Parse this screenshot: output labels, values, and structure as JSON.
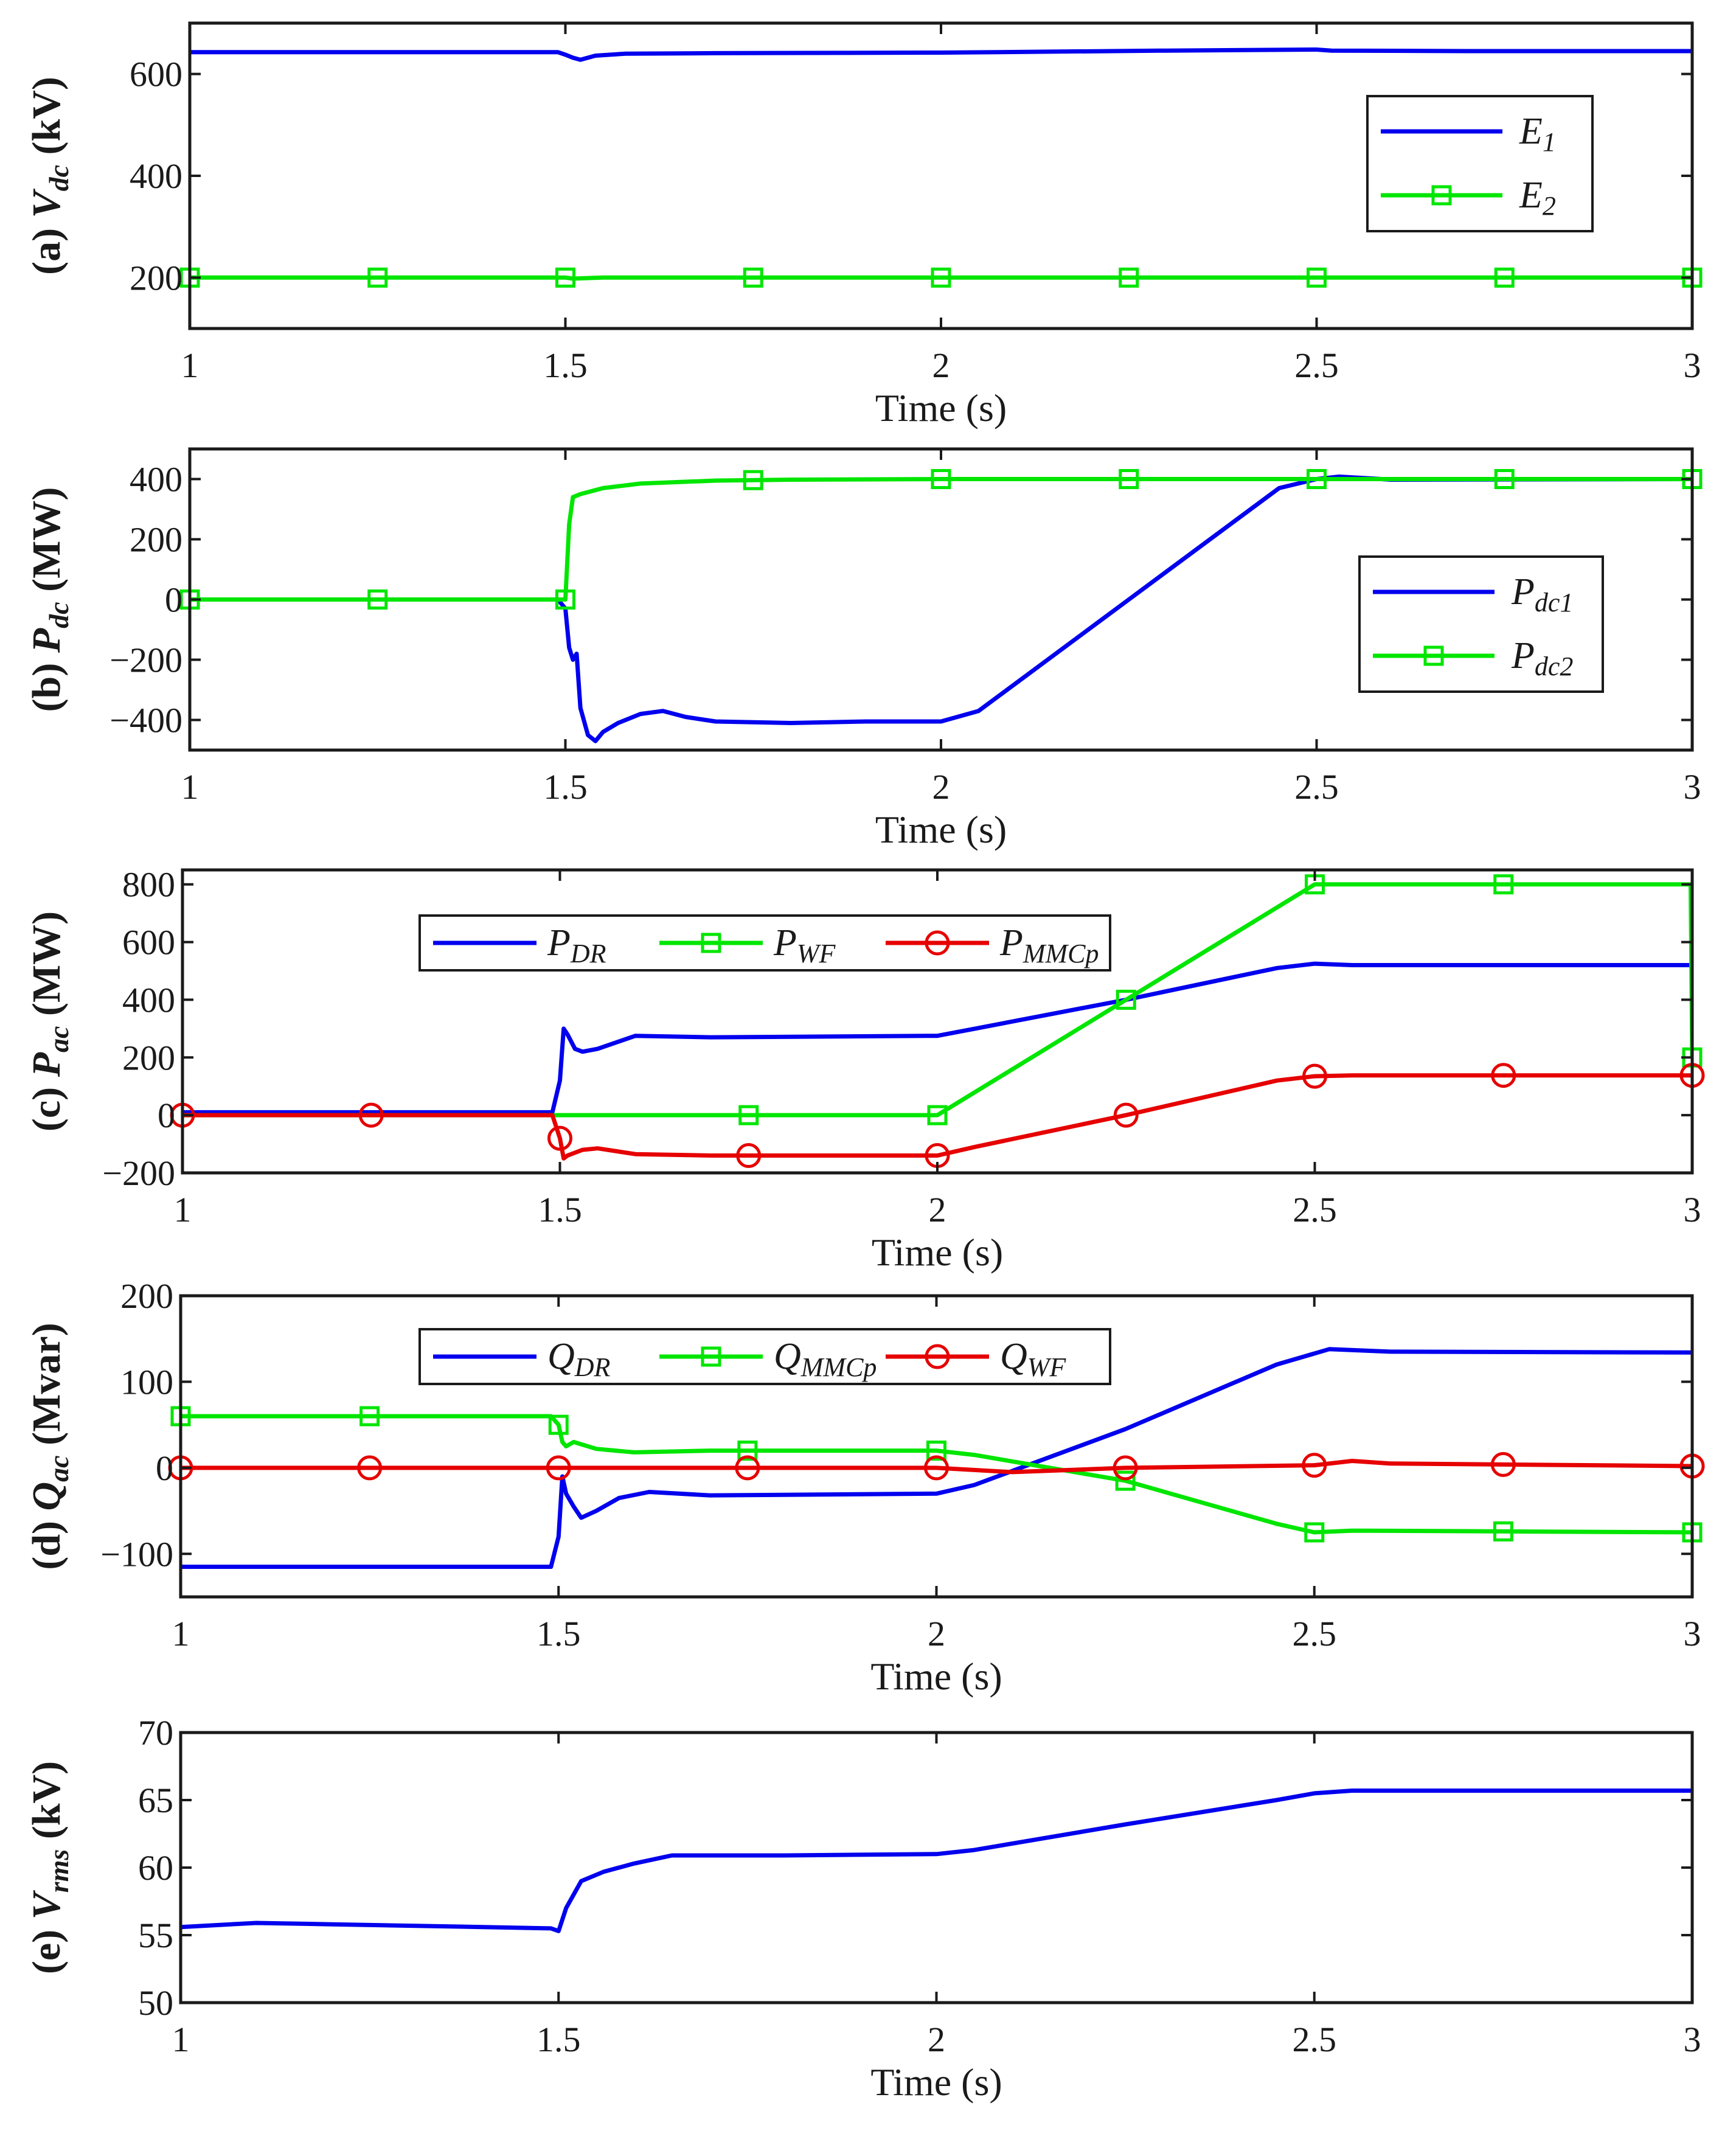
{
  "figure": {
    "description_free": true
  },
  "chart_data": [
    {
      "id": "a",
      "type": "line",
      "ylabel": "(a) V_dc (kV)",
      "ylabel_parts": {
        "prefix": "(a) ",
        "var": "V",
        "sub": "dc",
        "unit": " (kV)"
      },
      "xlabel": "Time (s)",
      "xlim": [
        1,
        3
      ],
      "ylim": [
        100,
        700
      ],
      "xticks": [
        1,
        1.5,
        2,
        2.5,
        3
      ],
      "xtick_labels": [
        "1",
        "1.5",
        "2",
        "2.5",
        "3"
      ],
      "yticks": [
        200,
        400,
        600
      ],
      "ytick_labels": [
        "200",
        "400",
        "600"
      ],
      "legend_position": "right",
      "series": [
        {
          "name": "E",
          "sub": "1",
          "color": "#0000ee",
          "marker": "none",
          "x": [
            1,
            1.49,
            1.5,
            1.51,
            1.52,
            1.54,
            1.58,
            1.7,
            2.0,
            2.3,
            2.5,
            2.52,
            2.7,
            3.0
          ],
          "y": [
            643,
            643,
            638,
            632,
            628,
            636,
            640,
            641,
            642,
            646,
            648,
            646,
            645,
            645
          ]
        },
        {
          "name": "E",
          "sub": "2",
          "color": "#00e600",
          "marker": "square",
          "x": [
            1,
            1.5,
            1.51,
            1.55,
            2.0,
            3.0
          ],
          "y": [
            200,
            200,
            198,
            200,
            200,
            200
          ],
          "marker_x": [
            1,
            1.25,
            1.5,
            1.75,
            2.0,
            2.25,
            2.5,
            2.75,
            3.0
          ]
        }
      ]
    },
    {
      "id": "b",
      "type": "line",
      "ylabel": "(b) P_dc (MW)",
      "ylabel_parts": {
        "prefix": "(b) ",
        "var": "P",
        "sub": "dc",
        "unit": " (MW)"
      },
      "xlabel": "Time (s)",
      "xlim": [
        1,
        3
      ],
      "ylim": [
        -500,
        500
      ],
      "xticks": [
        1,
        1.5,
        2,
        2.5,
        3
      ],
      "xtick_labels": [
        "1",
        "1.5",
        "2",
        "2.5",
        "3"
      ],
      "yticks": [
        -400,
        -200,
        0,
        200,
        400
      ],
      "ytick_labels": [
        "-400",
        "-200",
        "0",
        "200",
        "400"
      ],
      "legend_position": "right",
      "series": [
        {
          "name": "P",
          "sub": "dc1",
          "color": "#0000ee",
          "marker": "none",
          "x": [
            1,
            1.49,
            1.5,
            1.505,
            1.51,
            1.515,
            1.52,
            1.53,
            1.54,
            1.55,
            1.57,
            1.6,
            1.63,
            1.66,
            1.7,
            1.8,
            1.9,
            2.0,
            2.05,
            2.25,
            2.45,
            2.5,
            2.53,
            2.6,
            3.0
          ],
          "y": [
            0,
            0,
            -30,
            -160,
            -200,
            -180,
            -360,
            -450,
            -470,
            -440,
            -410,
            -380,
            -370,
            -390,
            -405,
            -410,
            -405,
            -405,
            -370,
            0,
            370,
            400,
            408,
            398,
            400
          ]
        },
        {
          "name": "P",
          "sub": "dc2",
          "color": "#00e600",
          "marker": "square",
          "x": [
            1,
            1.5,
            1.505,
            1.51,
            1.52,
            1.55,
            1.6,
            1.7,
            1.8,
            2.0,
            3.0
          ],
          "y": [
            0,
            0,
            250,
            340,
            350,
            370,
            385,
            395,
            398,
            400,
            400
          ],
          "marker_x": [
            1,
            1.25,
            1.5,
            1.75,
            2.0,
            2.25,
            2.5,
            2.75,
            3.0
          ]
        }
      ]
    },
    {
      "id": "c",
      "type": "line",
      "ylabel": "(c) P_ac (MW)",
      "ylabel_parts": {
        "prefix": "(c) ",
        "var": "P",
        "sub": "ac",
        "unit": " (MW)"
      },
      "xlabel": "Time (s)",
      "xlim": [
        1,
        3
      ],
      "ylim": [
        -200,
        850
      ],
      "xticks": [
        1,
        1.5,
        2,
        2.5,
        3
      ],
      "xtick_labels": [
        "1",
        "1.5",
        "2",
        "2.5",
        "3"
      ],
      "yticks": [
        -200,
        0,
        200,
        400,
        600,
        800
      ],
      "ytick_labels": [
        "-200",
        "0",
        "200",
        "400",
        "600",
        "800"
      ],
      "legend_position": "top",
      "series": [
        {
          "name": "P",
          "sub": "DR",
          "color": "#0000ee",
          "marker": "none",
          "x": [
            1,
            1.49,
            1.5,
            1.505,
            1.51,
            1.52,
            1.53,
            1.55,
            1.6,
            1.7,
            2.0,
            2.05,
            2.25,
            2.45,
            2.5,
            2.55,
            3.0
          ],
          "y": [
            10,
            10,
            120,
            300,
            280,
            230,
            220,
            230,
            275,
            270,
            275,
            300,
            400,
            510,
            525,
            520,
            520
          ]
        },
        {
          "name": "P",
          "sub": "WF",
          "color": "#00e600",
          "marker": "square",
          "x": [
            1,
            2.0,
            2.5,
            2.998,
            3.0
          ],
          "y": [
            0,
            0,
            800,
            800,
            200
          ],
          "marker_x": [
            1.75,
            2.0,
            2.25,
            2.5,
            2.75,
            3.0
          ]
        },
        {
          "name": "P",
          "sub": "MMCp",
          "color": "#e60000",
          "marker": "circle",
          "x": [
            1,
            1.49,
            1.5,
            1.505,
            1.51,
            1.53,
            1.55,
            1.6,
            1.7,
            2.0,
            2.05,
            2.25,
            2.45,
            2.5,
            2.55,
            3.0
          ],
          "y": [
            0,
            0,
            -80,
            -150,
            -140,
            -120,
            -115,
            -135,
            -140,
            -140,
            -110,
            0,
            120,
            135,
            138,
            138
          ],
          "marker_x": [
            1.0,
            1.25,
            1.5,
            1.75,
            2.0,
            2.25,
            2.5,
            2.75,
            3.0
          ]
        }
      ]
    },
    {
      "id": "d",
      "type": "line",
      "ylabel": "(d) Q_ac (Mvar)",
      "ylabel_parts": {
        "prefix": "(d) ",
        "var": "Q",
        "sub": "ac",
        "unit": " (Mvar)"
      },
      "xlabel": "Time (s)",
      "xlim": [
        1,
        3
      ],
      "ylim": [
        -150,
        200
      ],
      "xticks": [
        1,
        1.5,
        2,
        2.5,
        3
      ],
      "xtick_labels": [
        "1",
        "1.5",
        "2",
        "2.5",
        "3"
      ],
      "yticks": [
        -100,
        0,
        100,
        200
      ],
      "ytick_labels": [
        "-100",
        "0",
        "100",
        "200"
      ],
      "legend_position": "top",
      "series": [
        {
          "name": "Q",
          "sub": "DR",
          "color": "#0000ee",
          "marker": "none",
          "x": [
            1,
            1.49,
            1.5,
            1.505,
            1.51,
            1.52,
            1.53,
            1.55,
            1.58,
            1.62,
            1.7,
            2.0,
            2.05,
            2.25,
            2.45,
            2.52,
            2.6,
            3.0
          ],
          "y": [
            -115,
            -115,
            -80,
            -10,
            -30,
            -45,
            -58,
            -50,
            -35,
            -28,
            -32,
            -30,
            -20,
            45,
            120,
            138,
            135,
            134
          ]
        },
        {
          "name": "Q",
          "sub": "MMCp",
          "color": "#00e600",
          "marker": "square",
          "x": [
            1,
            1.49,
            1.5,
            1.505,
            1.51,
            1.52,
            1.55,
            1.6,
            1.7,
            2.0,
            2.05,
            2.25,
            2.45,
            2.5,
            2.55,
            3.0
          ],
          "y": [
            60,
            60,
            50,
            30,
            25,
            30,
            22,
            18,
            20,
            20,
            15,
            -15,
            -65,
            -75,
            -73,
            -75
          ],
          "marker_x": [
            1.0,
            1.25,
            1.5,
            1.75,
            2.0,
            2.25,
            2.5,
            2.75,
            3.0
          ]
        },
        {
          "name": "Q",
          "sub": "WF",
          "color": "#e60000",
          "marker": "circle",
          "x": [
            1,
            2.0,
            2.1,
            2.25,
            2.5,
            2.55,
            2.6,
            3.0
          ],
          "y": [
            0,
            0,
            -5,
            0,
            3,
            8,
            5,
            2
          ],
          "marker_x": [
            1.0,
            1.25,
            1.5,
            1.75,
            2.0,
            2.25,
            2.5,
            2.75,
            3.0
          ]
        }
      ]
    },
    {
      "id": "e",
      "type": "line",
      "ylabel": "(e) V_rms (kV)",
      "ylabel_parts": {
        "prefix": "(e) ",
        "var": "V",
        "sub": "rms",
        "unit": " (kV)"
      },
      "xlabel": "Time (s)",
      "xlim": [
        1,
        3
      ],
      "ylim": [
        50,
        70
      ],
      "xticks": [
        1,
        1.5,
        2,
        2.5,
        3
      ],
      "xtick_labels": [
        "1",
        "1.5",
        "2",
        "2.5",
        "3"
      ],
      "yticks": [
        50,
        55,
        60,
        65,
        70
      ],
      "ytick_labels": [
        "50",
        "55",
        "60",
        "65",
        "70"
      ],
      "legend_position": "none",
      "series": [
        {
          "name": "V",
          "sub": "rms",
          "color": "#0000ee",
          "marker": "none",
          "x": [
            1,
            1.1,
            1.2,
            1.3,
            1.4,
            1.49,
            1.5,
            1.51,
            1.53,
            1.56,
            1.6,
            1.65,
            1.7,
            1.8,
            2.0,
            2.05,
            2.25,
            2.45,
            2.5,
            2.55,
            3.0
          ],
          "y": [
            55.6,
            55.9,
            55.8,
            55.7,
            55.6,
            55.5,
            55.3,
            57.0,
            59.0,
            59.7,
            60.3,
            60.9,
            60.9,
            60.9,
            61.0,
            61.3,
            63.2,
            65.0,
            65.5,
            65.7,
            65.7
          ]
        }
      ]
    }
  ]
}
